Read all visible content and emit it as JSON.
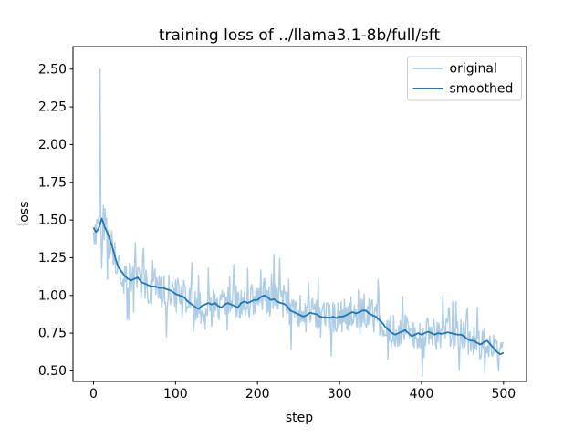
{
  "figure": {
    "background": "#ffffff",
    "axes_edge_color": "#000000",
    "legend_border_color": "#cccccc"
  },
  "chart_data": {
    "type": "line",
    "title": "training loss of ../llama3.1-8b/full/sft",
    "xlabel": "step",
    "ylabel": "loss",
    "xlim": [
      -25,
      528
    ],
    "ylim": [
      0.43,
      2.65
    ],
    "grid": false,
    "xticks": {
      "values": [
        0,
        100,
        200,
        300,
        400,
        500
      ],
      "labels": [
        "0",
        "100",
        "200",
        "300",
        "400",
        "500"
      ]
    },
    "yticks": {
      "values": [
        0.5,
        0.75,
        1.0,
        1.25,
        1.5,
        1.75,
        2.0,
        2.25,
        2.5
      ],
      "labels": [
        "0.50",
        "0.75",
        "1.00",
        "1.25",
        "1.50",
        "1.75",
        "2.00",
        "2.25",
        "2.50"
      ]
    },
    "legend": {
      "position": "upper right",
      "entries": [
        {
          "label": "original",
          "color": "#aecde5"
        },
        {
          "label": "smoothed",
          "color": "#1f77b4"
        }
      ]
    },
    "series": [
      {
        "name": "original",
        "color": "#aecde5",
        "line_width": 1.4,
        "x_range": [
          0,
          500
        ],
        "x_step": 1,
        "derivation": "smoothed keypoints plus high-frequency zigzag noise; peak spike 2.50 at step 8, minima near 0.49 around steps 475-495",
        "noise": {
          "seed": 11,
          "base_amplitude": 0.09,
          "flip_probability": 0.25,
          "burst_probability": 0.12,
          "burst_min": 0.06,
          "burst_span": 0.18,
          "level_scale_offset": 0.55,
          "level_scale_gain": 0.5,
          "clamp": [
            0.44,
            2.56
          ]
        },
        "overrides": {
          "0": 1.42,
          "7": 1.52,
          "8": 2.5,
          "9": 1.45,
          "10": 1.18,
          "455": 0.89,
          "477": 0.49,
          "494": 0.5
        }
      },
      {
        "name": "smoothed",
        "color": "#1f77b4",
        "line_width": 1.8,
        "keypoints": [
          [
            0,
            1.45
          ],
          [
            3,
            1.42
          ],
          [
            6,
            1.44
          ],
          [
            10,
            1.51
          ],
          [
            14,
            1.45
          ],
          [
            18,
            1.4
          ],
          [
            22,
            1.34
          ],
          [
            26,
            1.26
          ],
          [
            30,
            1.19
          ],
          [
            34,
            1.16
          ],
          [
            38,
            1.13
          ],
          [
            42,
            1.11
          ],
          [
            46,
            1.1
          ],
          [
            50,
            1.11
          ],
          [
            54,
            1.12
          ],
          [
            58,
            1.09
          ],
          [
            62,
            1.08
          ],
          [
            66,
            1.07
          ],
          [
            70,
            1.06
          ],
          [
            75,
            1.06
          ],
          [
            80,
            1.05
          ],
          [
            85,
            1.05
          ],
          [
            90,
            1.04
          ],
          [
            95,
            1.03
          ],
          [
            100,
            1.01
          ],
          [
            105,
            1.0
          ],
          [
            110,
            0.99
          ],
          [
            115,
            0.96
          ],
          [
            120,
            0.94
          ],
          [
            125,
            0.92
          ],
          [
            128,
            0.91
          ],
          [
            132,
            0.93
          ],
          [
            136,
            0.94
          ],
          [
            140,
            0.95
          ],
          [
            144,
            0.94
          ],
          [
            148,
            0.95
          ],
          [
            152,
            0.93
          ],
          [
            156,
            0.92
          ],
          [
            160,
            0.94
          ],
          [
            164,
            0.95
          ],
          [
            168,
            0.94
          ],
          [
            172,
            0.93
          ],
          [
            176,
            0.92
          ],
          [
            180,
            0.95
          ],
          [
            184,
            0.96
          ],
          [
            188,
            0.95
          ],
          [
            192,
            0.96
          ],
          [
            196,
            0.97
          ],
          [
            200,
            0.97
          ],
          [
            204,
            0.99
          ],
          [
            208,
            1.0
          ],
          [
            212,
            0.99
          ],
          [
            216,
            0.97
          ],
          [
            220,
            0.975
          ],
          [
            224,
            0.96
          ],
          [
            228,
            0.95
          ],
          [
            232,
            0.945
          ],
          [
            236,
            0.93
          ],
          [
            240,
            0.9
          ],
          [
            244,
            0.89
          ],
          [
            248,
            0.88
          ],
          [
            252,
            0.87
          ],
          [
            256,
            0.86
          ],
          [
            260,
            0.87
          ],
          [
            264,
            0.885
          ],
          [
            268,
            0.88
          ],
          [
            272,
            0.875
          ],
          [
            276,
            0.86
          ],
          [
            280,
            0.855
          ],
          [
            284,
            0.855
          ],
          [
            288,
            0.85
          ],
          [
            292,
            0.86
          ],
          [
            296,
            0.85
          ],
          [
            300,
            0.86
          ],
          [
            304,
            0.86
          ],
          [
            308,
            0.87
          ],
          [
            312,
            0.88
          ],
          [
            316,
            0.89
          ],
          [
            320,
            0.88
          ],
          [
            324,
            0.89
          ],
          [
            328,
            0.9
          ],
          [
            332,
            0.9
          ],
          [
            336,
            0.88
          ],
          [
            340,
            0.87
          ],
          [
            344,
            0.86
          ],
          [
            348,
            0.84
          ],
          [
            352,
            0.82
          ],
          [
            356,
            0.79
          ],
          [
            360,
            0.77
          ],
          [
            364,
            0.75
          ],
          [
            368,
            0.74
          ],
          [
            372,
            0.75
          ],
          [
            376,
            0.76
          ],
          [
            380,
            0.77
          ],
          [
            384,
            0.75
          ],
          [
            388,
            0.73
          ],
          [
            392,
            0.74
          ],
          [
            396,
            0.75
          ],
          [
            400,
            0.74
          ],
          [
            404,
            0.75
          ],
          [
            408,
            0.76
          ],
          [
            412,
            0.75
          ],
          [
            416,
            0.74
          ],
          [
            420,
            0.75
          ],
          [
            424,
            0.745
          ],
          [
            428,
            0.75
          ],
          [
            432,
            0.755
          ],
          [
            436,
            0.75
          ],
          [
            440,
            0.745
          ],
          [
            444,
            0.74
          ],
          [
            448,
            0.74
          ],
          [
            452,
            0.73
          ],
          [
            456,
            0.71
          ],
          [
            460,
            0.7
          ],
          [
            464,
            0.7
          ],
          [
            468,
            0.685
          ],
          [
            472,
            0.675
          ],
          [
            476,
            0.69
          ],
          [
            480,
            0.7
          ],
          [
            484,
            0.675
          ],
          [
            488,
            0.65
          ],
          [
            492,
            0.625
          ],
          [
            496,
            0.61
          ],
          [
            500,
            0.62
          ]
        ]
      }
    ]
  }
}
